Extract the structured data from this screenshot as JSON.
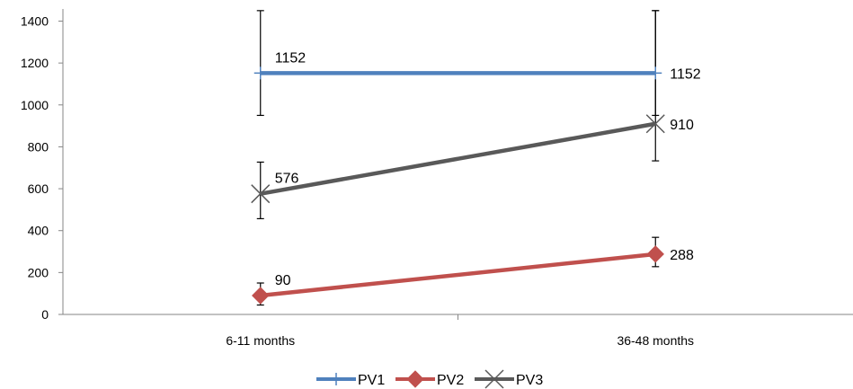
{
  "chart_data": {
    "type": "line",
    "categories": [
      "6-11 months",
      "36-48 months"
    ],
    "ylim": [
      0,
      1400
    ],
    "yticks": [
      0,
      200,
      400,
      600,
      800,
      1000,
      1200,
      1400
    ],
    "grid": false,
    "legend_position": "bottom",
    "series": [
      {
        "name": "PV1",
        "values": [
          1152,
          1152
        ],
        "labels": [
          "1152",
          "1152"
        ],
        "error_low": [
          950,
          950
        ],
        "error_high": [
          1450,
          1450
        ],
        "color": "#4F81BD",
        "marker": "plus"
      },
      {
        "name": "PV2",
        "values": [
          90,
          288
        ],
        "labels": [
          "90",
          "288"
        ],
        "error_low": [
          45,
          228
        ],
        "error_high": [
          150,
          368
        ],
        "color": "#C0504D",
        "marker": "diamond"
      },
      {
        "name": "PV3",
        "values": [
          576,
          910
        ],
        "labels": [
          "576",
          "910"
        ],
        "error_low": [
          457,
          733
        ],
        "error_high": [
          727,
          1450
        ],
        "color": "#595959",
        "marker": "x"
      }
    ]
  }
}
